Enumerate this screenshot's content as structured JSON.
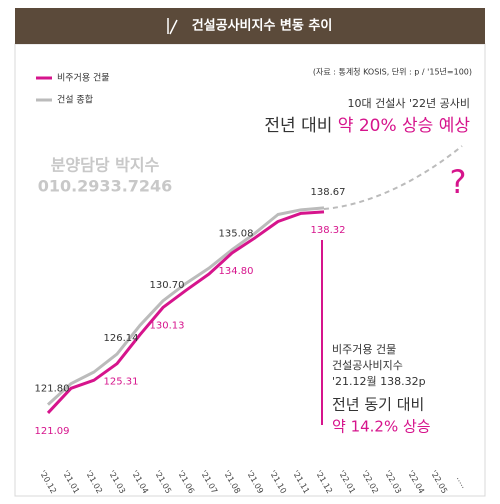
{
  "chart_data": {
    "type": "line",
    "title": "건설공사비지수 변동 추이",
    "source_note": "(자료 : 통계청 KOSIS, 단위 : p / '15년=100)",
    "annotations": {
      "forecast_line1": "10대 건설사 '22년 공사비",
      "forecast_line2a": "전년 대비",
      "forecast_line2b": "약 20% 상승 예상",
      "question": "?",
      "watermark_name": "분양담당 박지수",
      "watermark_phone": "010.2933.7246",
      "note_line1": "비주거용 건물",
      "note_line2": "건설공사비지수",
      "note_line3": "'21.12월 138.32p",
      "note_line4": "전년 동기 대비",
      "note_line5": "약 14.2% 상승"
    },
    "categories": [
      "'20.12",
      "'21.01",
      "'21.02",
      "'21.03",
      "'21.04",
      "'21.05",
      "'21.06",
      "'21.07",
      "'21.08",
      "'21.09",
      "'21.10",
      "'21.11",
      "'21.12",
      "'22.01",
      "'22.02",
      "'22.03",
      "'22.04",
      "'22.05",
      "....."
    ],
    "series": [
      {
        "name": "비주거용 건물",
        "color": "#d6148c",
        "values": [
          121.09,
          123.2,
          123.9,
          125.31,
          127.8,
          130.13,
          131.6,
          133.0,
          134.8,
          136.1,
          137.5,
          138.2,
          138.32,
          null,
          null,
          null,
          null,
          null,
          null
        ],
        "value_labels": [
          "121.09",
          null,
          null,
          "125.31",
          null,
          "130.13",
          null,
          null,
          "134.80",
          null,
          null,
          null,
          "138.32",
          null,
          null,
          null,
          null,
          null,
          null
        ]
      },
      {
        "name": "건설 종합",
        "color": "#bbbbbb",
        "values": [
          121.8,
          123.6,
          124.6,
          126.14,
          128.6,
          130.7,
          132.2,
          133.5,
          135.08,
          136.5,
          138.1,
          138.5,
          138.67,
          null,
          null,
          null,
          null,
          null,
          null
        ],
        "value_labels": [
          "121.80",
          null,
          null,
          "126.14",
          null,
          "130.70",
          null,
          null,
          "135.08",
          null,
          null,
          null,
          "138.67",
          null,
          null,
          null,
          null,
          null,
          null
        ]
      }
    ],
    "ylim": [
      115,
      145
    ]
  }
}
